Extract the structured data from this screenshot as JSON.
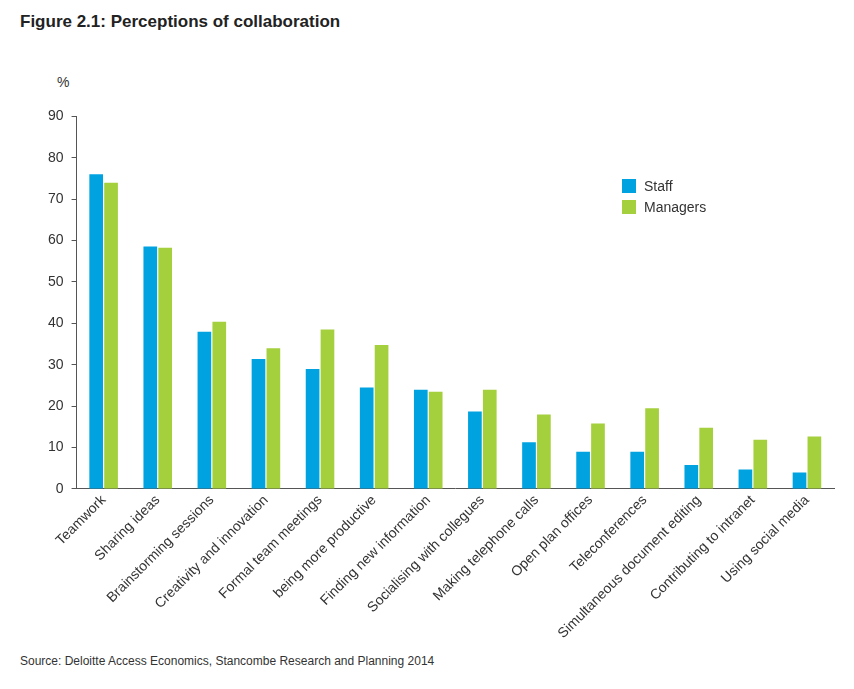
{
  "chart_data": {
    "type": "bar",
    "title": "Figure 2.1: Perceptions of collaboration",
    "y_label": "%",
    "source": "Source: Deloitte Access Economics, Stancombe Research and Planning 2014",
    "categories": [
      "Teamwork",
      "Sharing ideas",
      "Brainstorming sessions",
      "Creativity and innovation",
      "Formal team meetings",
      "being more productive",
      "Finding new information",
      "Socialising with collegues",
      "Making telephone calls",
      "Open plan offices",
      "Teleconferences",
      "Simultaneous document editing",
      "Contributing to intranet",
      "Using social media"
    ],
    "series": [
      {
        "name": "Staff",
        "color": "#00a3e0",
        "values": [
          76,
          58.6,
          38,
          31.4,
          29,
          24.5,
          24,
          18.7,
          11.3,
          9,
          9,
          5.8,
          4.7,
          4
        ]
      },
      {
        "name": "Managers",
        "color": "#a4d03d",
        "values": [
          74,
          58.3,
          40.4,
          34,
          38.5,
          34.8,
          23.5,
          24,
          18,
          15.8,
          19.5,
          14.8,
          11.9,
          12.7
        ]
      }
    ],
    "ylim": [
      0,
      90
    ],
    "yticks": [
      0,
      10,
      20,
      30,
      40,
      50,
      60,
      70,
      80,
      90
    ],
    "grid": false,
    "legend": "top right"
  }
}
